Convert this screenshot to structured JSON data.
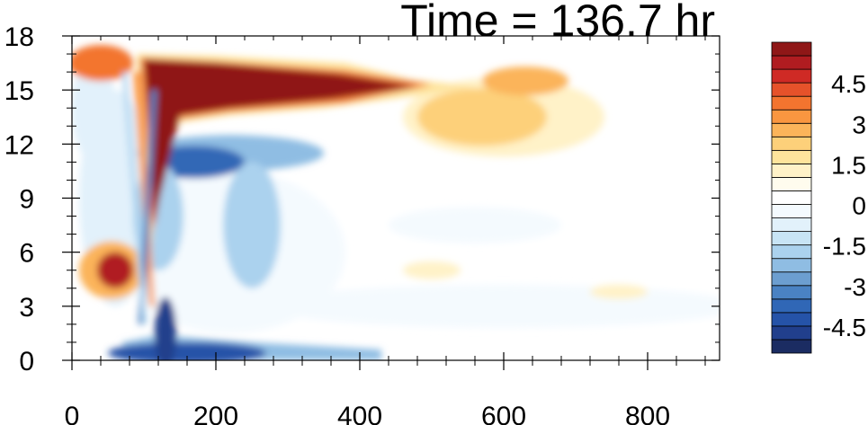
{
  "chart_data": {
    "type": "heatmap",
    "title": "Time = 136.7 hr",
    "xlabel": "",
    "ylabel": "",
    "xlim": [
      0,
      900
    ],
    "ylim": [
      0,
      18
    ],
    "xticks": [
      0,
      200,
      400,
      600,
      800
    ],
    "yticks": [
      0,
      3,
      6,
      9,
      12,
      15,
      18
    ],
    "colorbar": {
      "levels": [
        -5.5,
        -5.0,
        -4.5,
        -4.0,
        -3.5,
        -3.0,
        -2.5,
        -2.0,
        -1.5,
        -1.0,
        -0.5,
        0.0,
        0.5,
        1.0,
        1.5,
        2.0,
        2.5,
        3.0,
        3.5,
        4.0,
        4.5,
        5.0,
        5.5
      ],
      "labels": [
        "4.5",
        "3",
        "1.5",
        "0",
        "-1.5",
        "-3",
        "-4.5"
      ],
      "label_values": [
        4.5,
        3,
        1.5,
        0,
        -1.5,
        -3,
        -4.5
      ],
      "colors": [
        "#1b2c62",
        "#213f8c",
        "#2553a8",
        "#3067b6",
        "#4a82c3",
        "#6c9ed0",
        "#8fbde3",
        "#abd2ee",
        "#c8e4f5",
        "#e2f1fb",
        "#f4fafe",
        "#ffffff",
        "#fffcee",
        "#fff2c8",
        "#fee49c",
        "#fdd07a",
        "#fbb45a",
        "#f99640",
        "#f3742f",
        "#e6522a",
        "#cf2a25",
        "#b01c20",
        "#8f1717"
      ]
    },
    "features": [
      {
        "name": "upper warm plume",
        "x_range": [
          80,
          700
        ],
        "z_range": [
          13,
          17
        ],
        "peak": 5.5,
        "sign": "positive"
      },
      {
        "name": "lower cold band",
        "x_range": [
          80,
          430
        ],
        "z_range": [
          0,
          1.2
        ],
        "peak": -5.0,
        "sign": "negative"
      },
      {
        "name": "cold layer below plume",
        "x_range": [
          90,
          330
        ],
        "z_range": [
          10,
          13
        ],
        "peak": -4.0,
        "sign": "negative"
      },
      {
        "name": "left warm patch",
        "x_range": [
          10,
          90
        ],
        "z_range": [
          3,
          6
        ],
        "peak": 5.0,
        "sign": "positive"
      },
      {
        "name": "weak warm tail",
        "x_range": [
          460,
          700
        ],
        "z_range": [
          12,
          15
        ],
        "peak": 2.0,
        "sign": "positive"
      },
      {
        "name": "weak cold layer",
        "x_range": [
          300,
          900
        ],
        "z_range": [
          2,
          4
        ],
        "peak": -1.0,
        "sign": "negative"
      }
    ]
  }
}
